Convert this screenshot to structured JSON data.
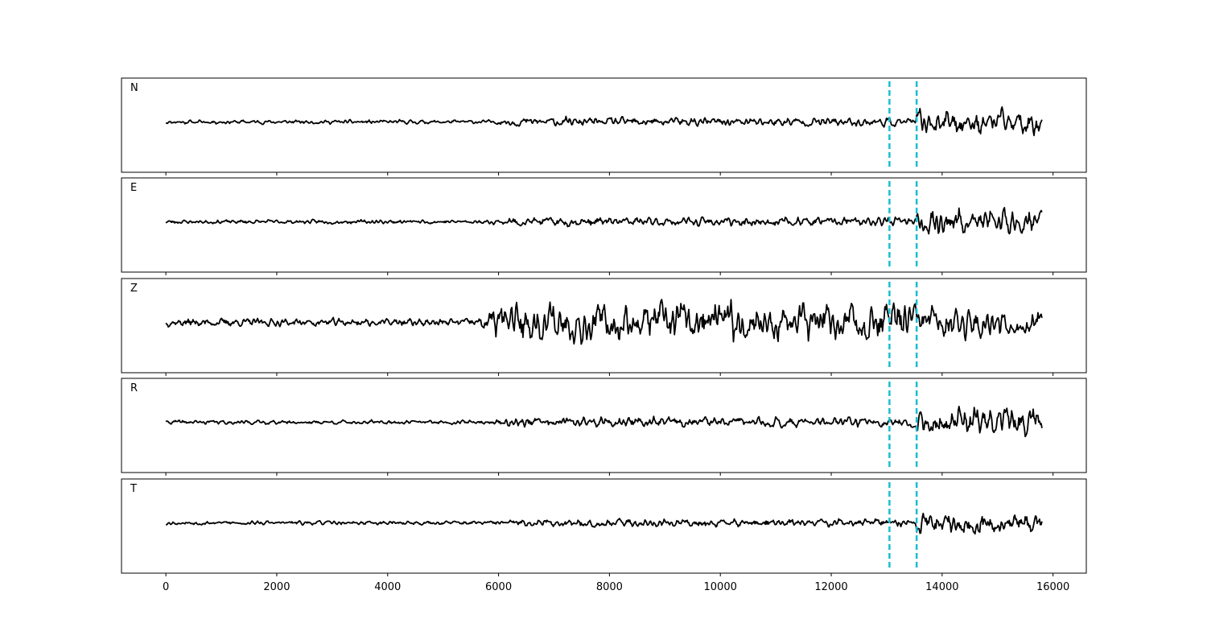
{
  "chart_data": {
    "type": "line",
    "panels": [
      {
        "label": "N",
        "amplitude": 0.55,
        "onset": 6300,
        "post_onset_gain": 2.2,
        "pick_gain": 6.0,
        "seed": 11
      },
      {
        "label": "E",
        "amplitude": 0.55,
        "onset": 6250,
        "post_onset_gain": 2.2,
        "pick_gain": 6.5,
        "seed": 23
      },
      {
        "label": "Z",
        "amplitude": 1.1,
        "onset": 6000,
        "post_onset_gain": 5.0,
        "pick_gain": 4.0,
        "seed": 37
      },
      {
        "label": "R",
        "amplitude": 0.55,
        "onset": 6250,
        "post_onset_gain": 2.4,
        "pick_gain": 7.0,
        "seed": 41
      },
      {
        "label": "T",
        "amplitude": 0.55,
        "onset": 6500,
        "post_onset_gain": 2.0,
        "pick_gain": 6.0,
        "seed": 53
      }
    ],
    "x_range": [
      0,
      15800
    ],
    "xlim": [
      -800,
      16600
    ],
    "xticks": [
      0,
      2000,
      4000,
      6000,
      8000,
      10000,
      12000,
      14000,
      16000
    ],
    "xtick_labels": [
      "0",
      "2000",
      "4000",
      "6000",
      "8000",
      "10000",
      "12000",
      "14000",
      "16000"
    ],
    "vertical_markers": [
      13050,
      13540
    ],
    "line_color": "#000000",
    "marker_color": "#17becf",
    "grid": false,
    "legend": false
  }
}
